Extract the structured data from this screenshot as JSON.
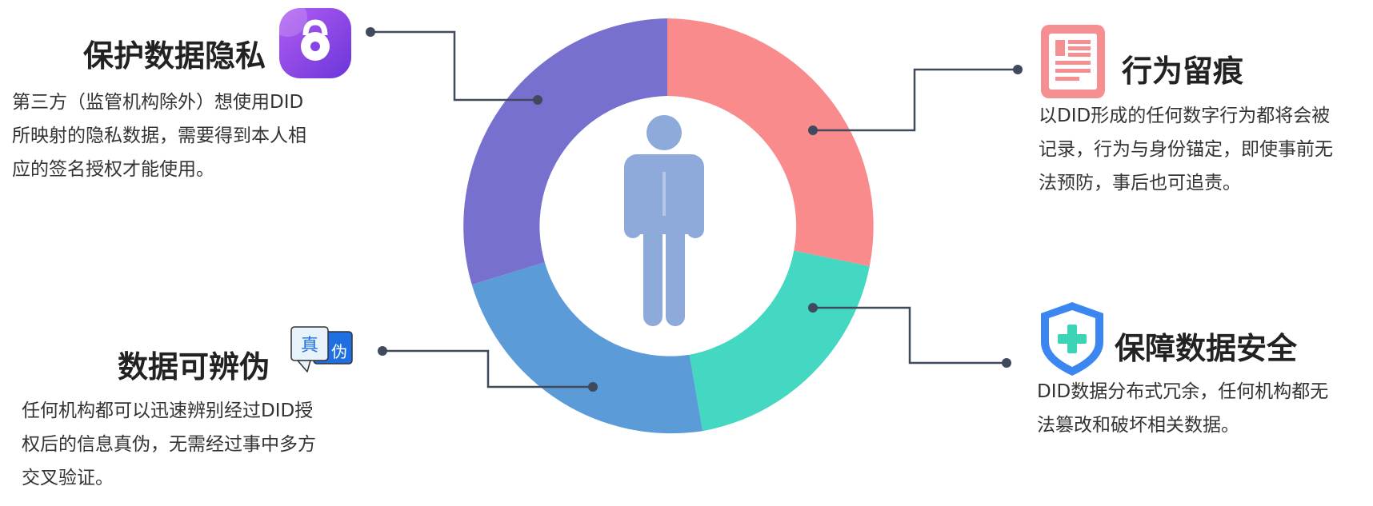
{
  "colors": {
    "segment_coral": "#f98b8c",
    "segment_teal": "#44d7c2",
    "segment_blue": "#5b9bd7",
    "segment_purple": "#7870cf",
    "person": "#8eaadb",
    "connector": "#3f4a5c",
    "lock_badge_gradient": [
      "#b35cf3",
      "#6a36d9"
    ],
    "doc_badge": "#f58f91",
    "shield": "#3b86f0",
    "shield_cross": "#3cd3b6",
    "verify_badge_blue": "#1f6fe3",
    "text_dark": "#222222",
    "text_body": "#333333"
  },
  "icons": {
    "privacy": "lock-icon",
    "trace": "document-icon",
    "security": "shield-plus-icon",
    "verify": "true-false-badge-icon",
    "center": "person-icon"
  },
  "features": {
    "privacy": {
      "title": "保护数据隐私",
      "desc_lines": [
        "第三方（监管机构除外）想使用DID",
        "所映射的隐私数据，需要得到本人相",
        "应的签名授权才能使用。"
      ]
    },
    "trace": {
      "title": "行为留痕",
      "desc_lines": [
        "以DID形成的任何数字行为都将会被",
        "记录，行为与身份锚定，即使事前无",
        "法预防，事后也可追责。"
      ]
    },
    "security": {
      "title": "保障数据安全",
      "desc_lines": [
        "DID数据分布式冗余，任何机构都无",
        "法篡改和破坏相关数据。"
      ]
    },
    "verify": {
      "title": "数据可辨伪",
      "badge_left": "真",
      "badge_right": "伪",
      "desc_lines": [
        "任何机构都可以迅速辨别经过DID授",
        "权后的信息真伪，无需经过事中多方",
        "交叉验证。"
      ]
    }
  }
}
